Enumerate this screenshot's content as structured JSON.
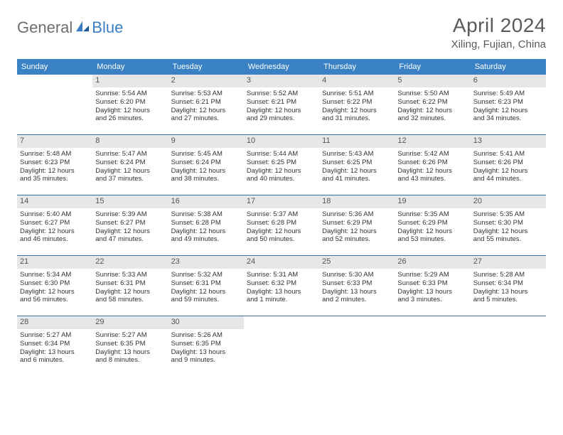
{
  "brand": {
    "part1": "General",
    "part2": "Blue"
  },
  "title": "April 2024",
  "location": "Xiling, Fujian, China",
  "colors": {
    "header_bg": "#3a82c4",
    "row_border": "#3a6fa0",
    "daynum_bg": "#e6e7e8",
    "text": "#333333",
    "title_text": "#5a5a5a",
    "logo_gray": "#6e6e6e",
    "logo_blue": "#3a7fc4"
  },
  "typography": {
    "title_fontsize": 28,
    "location_fontsize": 15,
    "dow_fontsize": 11,
    "body_fontsize": 9.5,
    "daynum_fontsize": 11
  },
  "daysOfWeek": [
    "Sunday",
    "Monday",
    "Tuesday",
    "Wednesday",
    "Thursday",
    "Friday",
    "Saturday"
  ],
  "weeks": [
    [
      null,
      {
        "n": "1",
        "sr": "Sunrise: 5:54 AM",
        "ss": "Sunset: 6:20 PM",
        "d1": "Daylight: 12 hours",
        "d2": "and 26 minutes."
      },
      {
        "n": "2",
        "sr": "Sunrise: 5:53 AM",
        "ss": "Sunset: 6:21 PM",
        "d1": "Daylight: 12 hours",
        "d2": "and 27 minutes."
      },
      {
        "n": "3",
        "sr": "Sunrise: 5:52 AM",
        "ss": "Sunset: 6:21 PM",
        "d1": "Daylight: 12 hours",
        "d2": "and 29 minutes."
      },
      {
        "n": "4",
        "sr": "Sunrise: 5:51 AM",
        "ss": "Sunset: 6:22 PM",
        "d1": "Daylight: 12 hours",
        "d2": "and 31 minutes."
      },
      {
        "n": "5",
        "sr": "Sunrise: 5:50 AM",
        "ss": "Sunset: 6:22 PM",
        "d1": "Daylight: 12 hours",
        "d2": "and 32 minutes."
      },
      {
        "n": "6",
        "sr": "Sunrise: 5:49 AM",
        "ss": "Sunset: 6:23 PM",
        "d1": "Daylight: 12 hours",
        "d2": "and 34 minutes."
      }
    ],
    [
      {
        "n": "7",
        "sr": "Sunrise: 5:48 AM",
        "ss": "Sunset: 6:23 PM",
        "d1": "Daylight: 12 hours",
        "d2": "and 35 minutes."
      },
      {
        "n": "8",
        "sr": "Sunrise: 5:47 AM",
        "ss": "Sunset: 6:24 PM",
        "d1": "Daylight: 12 hours",
        "d2": "and 37 minutes."
      },
      {
        "n": "9",
        "sr": "Sunrise: 5:45 AM",
        "ss": "Sunset: 6:24 PM",
        "d1": "Daylight: 12 hours",
        "d2": "and 38 minutes."
      },
      {
        "n": "10",
        "sr": "Sunrise: 5:44 AM",
        "ss": "Sunset: 6:25 PM",
        "d1": "Daylight: 12 hours",
        "d2": "and 40 minutes."
      },
      {
        "n": "11",
        "sr": "Sunrise: 5:43 AM",
        "ss": "Sunset: 6:25 PM",
        "d1": "Daylight: 12 hours",
        "d2": "and 41 minutes."
      },
      {
        "n": "12",
        "sr": "Sunrise: 5:42 AM",
        "ss": "Sunset: 6:26 PM",
        "d1": "Daylight: 12 hours",
        "d2": "and 43 minutes."
      },
      {
        "n": "13",
        "sr": "Sunrise: 5:41 AM",
        "ss": "Sunset: 6:26 PM",
        "d1": "Daylight: 12 hours",
        "d2": "and 44 minutes."
      }
    ],
    [
      {
        "n": "14",
        "sr": "Sunrise: 5:40 AM",
        "ss": "Sunset: 6:27 PM",
        "d1": "Daylight: 12 hours",
        "d2": "and 46 minutes."
      },
      {
        "n": "15",
        "sr": "Sunrise: 5:39 AM",
        "ss": "Sunset: 6:27 PM",
        "d1": "Daylight: 12 hours",
        "d2": "and 47 minutes."
      },
      {
        "n": "16",
        "sr": "Sunrise: 5:38 AM",
        "ss": "Sunset: 6:28 PM",
        "d1": "Daylight: 12 hours",
        "d2": "and 49 minutes."
      },
      {
        "n": "17",
        "sr": "Sunrise: 5:37 AM",
        "ss": "Sunset: 6:28 PM",
        "d1": "Daylight: 12 hours",
        "d2": "and 50 minutes."
      },
      {
        "n": "18",
        "sr": "Sunrise: 5:36 AM",
        "ss": "Sunset: 6:29 PM",
        "d1": "Daylight: 12 hours",
        "d2": "and 52 minutes."
      },
      {
        "n": "19",
        "sr": "Sunrise: 5:35 AM",
        "ss": "Sunset: 6:29 PM",
        "d1": "Daylight: 12 hours",
        "d2": "and 53 minutes."
      },
      {
        "n": "20",
        "sr": "Sunrise: 5:35 AM",
        "ss": "Sunset: 6:30 PM",
        "d1": "Daylight: 12 hours",
        "d2": "and 55 minutes."
      }
    ],
    [
      {
        "n": "21",
        "sr": "Sunrise: 5:34 AM",
        "ss": "Sunset: 6:30 PM",
        "d1": "Daylight: 12 hours",
        "d2": "and 56 minutes."
      },
      {
        "n": "22",
        "sr": "Sunrise: 5:33 AM",
        "ss": "Sunset: 6:31 PM",
        "d1": "Daylight: 12 hours",
        "d2": "and 58 minutes."
      },
      {
        "n": "23",
        "sr": "Sunrise: 5:32 AM",
        "ss": "Sunset: 6:31 PM",
        "d1": "Daylight: 12 hours",
        "d2": "and 59 minutes."
      },
      {
        "n": "24",
        "sr": "Sunrise: 5:31 AM",
        "ss": "Sunset: 6:32 PM",
        "d1": "Daylight: 13 hours",
        "d2": "and 1 minute."
      },
      {
        "n": "25",
        "sr": "Sunrise: 5:30 AM",
        "ss": "Sunset: 6:33 PM",
        "d1": "Daylight: 13 hours",
        "d2": "and 2 minutes."
      },
      {
        "n": "26",
        "sr": "Sunrise: 5:29 AM",
        "ss": "Sunset: 6:33 PM",
        "d1": "Daylight: 13 hours",
        "d2": "and 3 minutes."
      },
      {
        "n": "27",
        "sr": "Sunrise: 5:28 AM",
        "ss": "Sunset: 6:34 PM",
        "d1": "Daylight: 13 hours",
        "d2": "and 5 minutes."
      }
    ],
    [
      {
        "n": "28",
        "sr": "Sunrise: 5:27 AM",
        "ss": "Sunset: 6:34 PM",
        "d1": "Daylight: 13 hours",
        "d2": "and 6 minutes."
      },
      {
        "n": "29",
        "sr": "Sunrise: 5:27 AM",
        "ss": "Sunset: 6:35 PM",
        "d1": "Daylight: 13 hours",
        "d2": "and 8 minutes."
      },
      {
        "n": "30",
        "sr": "Sunrise: 5:26 AM",
        "ss": "Sunset: 6:35 PM",
        "d1": "Daylight: 13 hours",
        "d2": "and 9 minutes."
      },
      null,
      null,
      null,
      null
    ]
  ]
}
